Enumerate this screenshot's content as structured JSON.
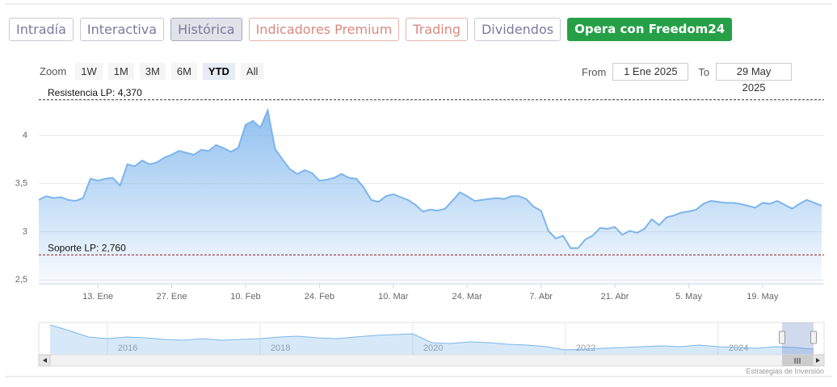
{
  "tabs": [
    "Intradía",
    "Interactiva",
    "Histórica",
    "Indicadores Premium",
    "Trading",
    "Dividendos",
    "Opera con Freedom24"
  ],
  "zoom": {
    "label": "Zoom",
    "buttons": [
      "1W",
      "1M",
      "3M",
      "6M",
      "YTD",
      "All"
    ],
    "selected": 4
  },
  "range": {
    "from_label": "From",
    "from": "1 Ene 2025",
    "to_label": "To",
    "to": "29 May 2025"
  },
  "chart_data": {
    "type": "area",
    "color": "#7cb5ec",
    "categories": [
      null,
      null,
      null,
      null,
      null,
      null,
      null,
      null,
      "13. Ene",
      null,
      null,
      null,
      null,
      null,
      null,
      null,
      null,
      null,
      "27. Ene",
      null,
      null,
      null,
      null,
      null,
      null,
      null,
      null,
      null,
      "10. Feb",
      null,
      null,
      null,
      null,
      null,
      null,
      null,
      null,
      null,
      "24. Feb",
      null,
      null,
      null,
      null,
      null,
      null,
      null,
      null,
      null,
      "10. Mar",
      null,
      null,
      null,
      null,
      null,
      null,
      null,
      null,
      null,
      "24. Mar",
      null,
      null,
      null,
      null,
      null,
      null,
      null,
      null,
      null,
      "7. Abr",
      null,
      null,
      null,
      null,
      null,
      null,
      null,
      null,
      null,
      "21. Abr",
      null,
      null,
      null,
      null,
      null,
      null,
      null,
      null,
      null,
      "5. May",
      null,
      null,
      null,
      null,
      null,
      null,
      null,
      null,
      null,
      "19. May",
      null,
      null,
      null,
      null,
      null,
      null,
      null,
      null
    ],
    "values": [
      3.33,
      3.37,
      3.35,
      3.36,
      3.33,
      3.32,
      3.35,
      3.55,
      3.53,
      3.55,
      3.56,
      3.48,
      3.7,
      3.68,
      3.74,
      3.7,
      3.72,
      3.77,
      3.8,
      3.84,
      3.82,
      3.8,
      3.85,
      3.84,
      3.9,
      3.87,
      3.83,
      3.87,
      4.11,
      4.15,
      4.08,
      4.26,
      3.86,
      3.75,
      3.65,
      3.6,
      3.64,
      3.61,
      3.53,
      3.54,
      3.56,
      3.6,
      3.56,
      3.55,
      3.46,
      3.33,
      3.31,
      3.37,
      3.39,
      3.36,
      3.33,
      3.28,
      3.21,
      3.23,
      3.22,
      3.24,
      3.32,
      3.41,
      3.37,
      3.32,
      3.33,
      3.34,
      3.35,
      3.34,
      3.37,
      3.37,
      3.34,
      3.26,
      3.22,
      3.01,
      2.93,
      2.96,
      2.83,
      2.83,
      2.92,
      2.96,
      3.04,
      3.03,
      3.05,
      2.97,
      3.01,
      2.99,
      3.03,
      3.13,
      3.07,
      3.15,
      3.17,
      3.2,
      3.21,
      3.23,
      3.29,
      3.32,
      3.31,
      3.3,
      3.3,
      3.29,
      3.27,
      3.25,
      3.3,
      3.29,
      3.32,
      3.28,
      3.24,
      3.29,
      3.33,
      3.3,
      3.27
    ],
    "ylim": [
      2.46,
      4.46
    ],
    "yticks": [
      {
        "value": 2.5,
        "label": "2,5"
      },
      3,
      {
        "value": 3.5,
        "label": "3,5"
      },
      4
    ],
    "grid": true,
    "plot_lines": [
      {
        "value": 4.37,
        "label": "Resistencia LP: 4,370",
        "color": "#333333"
      },
      {
        "value": 2.76,
        "label": "Soporte LP: 2,760",
        "color": "#8b1a1a"
      }
    ]
  },
  "navigator": {
    "color": "#7cb5ec",
    "ylim": [
      2,
      6
    ],
    "categories": [
      null,
      null,
      null,
      "2016",
      null,
      null,
      null,
      null,
      null,
      null,
      null,
      "2018",
      null,
      null,
      null,
      null,
      null,
      null,
      null,
      "2020",
      null,
      null,
      null,
      null,
      null,
      null,
      null,
      "2022",
      null,
      null,
      null,
      null,
      null,
      null,
      null,
      "2024",
      null,
      null,
      null,
      null,
      null
    ],
    "values": [
      5.89,
      5.16,
      4.32,
      4.11,
      4.32,
      4.21,
      4.0,
      3.89,
      4.11,
      3.89,
      4.0,
      4.11,
      4.32,
      4.42,
      4.21,
      4.11,
      4.32,
      4.53,
      4.63,
      4.74,
      3.58,
      3.47,
      3.68,
      3.58,
      3.37,
      3.26,
      3.05,
      2.63,
      2.74,
      2.84,
      2.95,
      3.05,
      3.16,
      3.05,
      3.26,
      3.05,
      2.95,
      2.84,
      3.05,
      2.95,
      2.74
    ]
  },
  "credit": "Estrategias de Inversión"
}
